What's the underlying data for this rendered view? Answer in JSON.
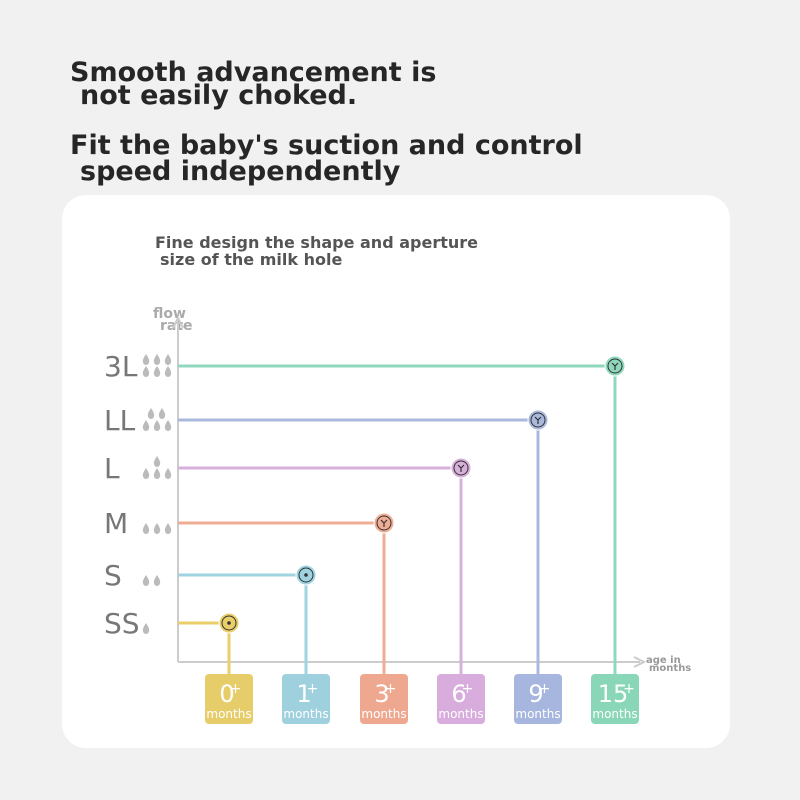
{
  "header": {
    "lines": [
      "Smooth advancement is",
      "not easily choked.",
      "Fit the baby's suction and control",
      "speed independently"
    ]
  },
  "panel": {
    "title": [
      "Fine design the shape and aperture",
      "size of the milk hole"
    ],
    "y_axis_label": [
      "flow",
      "rate"
    ],
    "x_axis_label": [
      "age in",
      "months"
    ],
    "items": [
      {
        "level": "SS",
        "age": "0",
        "plus": "+",
        "unit": "months",
        "color": "#e8cf6a",
        "box": "#e6cd6a"
      },
      {
        "level": "S",
        "age": "1",
        "plus": "+",
        "unit": "months",
        "color": "#9fd3e0",
        "box": "#9fd0de"
      },
      {
        "level": "M",
        "age": "3",
        "plus": "+",
        "unit": "months",
        "color": "#f0ad95",
        "box": "#efa890"
      },
      {
        "level": "L",
        "age": "6",
        "plus": "+",
        "unit": "months",
        "color": "#d8b0dc",
        "box": "#d8acdc"
      },
      {
        "level": "LL",
        "age": "9",
        "plus": "+",
        "unit": "months",
        "color": "#a9b8dc",
        "box": "#a6b6de"
      },
      {
        "level": "3L",
        "age": "15",
        "plus": "+",
        "unit": "months",
        "color": "#8fd8be",
        "box": "#8ad6b8"
      }
    ]
  }
}
